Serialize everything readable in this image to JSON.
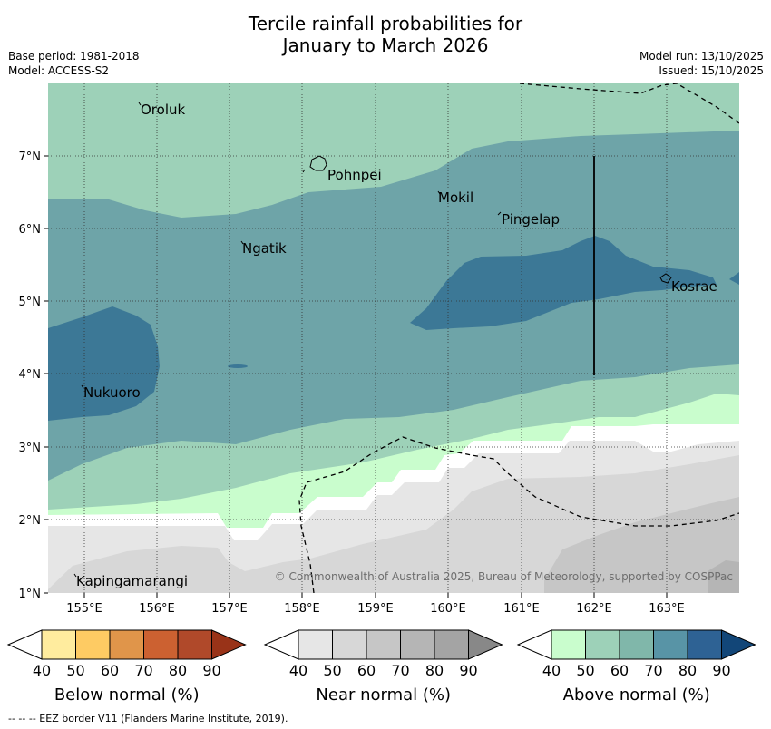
{
  "title_line1": "Tercile rainfall probabilities for",
  "title_line2": "January to March 2026",
  "meta": {
    "base_period": "Base period: 1981-2018",
    "model": "Model: ACCESS-S2",
    "model_run": "Model run: 13/10/2025",
    "issued": "Issued: 15/10/2025"
  },
  "axes": {
    "lon_labels": [
      "155°E",
      "156°E",
      "157°E",
      "158°E",
      "159°E",
      "160°E",
      "161°E",
      "162°E",
      "163°E"
    ],
    "lat_labels": [
      "7°N",
      "6°N",
      "5°N",
      "4°N",
      "3°N",
      "2°N",
      "1°N"
    ]
  },
  "places": [
    "Oroluk",
    "Pohnpei",
    "Mokil",
    "Pingelap",
    "Ngatik",
    "Kosrae",
    "Nukuoro",
    "Kapingamarangi"
  ],
  "credit": "© Commonwealth of Australia 2025, Bureau of Meteorology, supported by COSPPac",
  "colorbars": [
    {
      "title": "Below normal (%)",
      "ticks": [
        "40",
        "50",
        "60",
        "70",
        "80",
        "90"
      ],
      "colors": [
        "#ffffff",
        "#ffec9e",
        "#fecb63",
        "#e0954a",
        "#cc6131",
        "#b0492a",
        "#993318"
      ]
    },
    {
      "title": "Near normal (%)",
      "ticks": [
        "40",
        "50",
        "60",
        "70",
        "80",
        "90"
      ],
      "colors": [
        "#ffffff",
        "#e6e6e6",
        "#d7d7d7",
        "#c6c6c6",
        "#b5b5b5",
        "#a4a4a4",
        "#888888"
      ]
    },
    {
      "title": "Above normal (%)",
      "ticks": [
        "40",
        "50",
        "60",
        "70",
        "80",
        "90"
      ],
      "colors": [
        "#ffffff",
        "#c9fdcd",
        "#9dd1b8",
        "#80b7aa",
        "#5894a6",
        "#2e6294",
        "#124678"
      ]
    }
  ],
  "eez_note": "--  --  -- EEZ border V11 (Flanders Marine Institute, 2019)."
}
